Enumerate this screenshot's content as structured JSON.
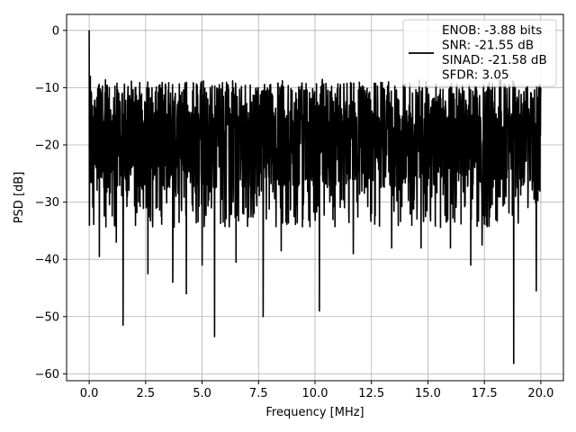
{
  "chart_data": {
    "type": "line",
    "title": "",
    "xlabel": "Frequency [MHz]",
    "ylabel": "PSD [dB]",
    "xlim": [
      -1.0,
      21.0
    ],
    "ylim": [
      -61.2,
      2.8
    ],
    "grid": true,
    "legend_position": "top-right",
    "x_ticks": [
      0.0,
      2.5,
      5.0,
      7.5,
      10.0,
      12.5,
      15.0,
      17.5,
      20.0
    ],
    "x_tick_labels": [
      "0.0",
      "2.5",
      "5.0",
      "7.5",
      "10.0",
      "12.5",
      "15.0",
      "17.5",
      "20.0"
    ],
    "y_ticks": [
      0,
      -10,
      -20,
      -30,
      -40,
      -50,
      -60
    ],
    "y_tick_labels": [
      "0",
      "−10",
      "−20",
      "−30",
      "−40",
      "−50",
      "−60"
    ],
    "legend_lines": [
      "ENOB: -3.88 bits",
      "SNR: -21.55 dB",
      "SINAD: -21.58 dB",
      "SFDR: 3.05"
    ],
    "series": [
      {
        "color": "#000000",
        "x_start": 0.0,
        "x_end": 20.0,
        "sample_count": 2000,
        "noise_floor_db": -21.5,
        "peaks": [
          {
            "x": 0.0,
            "y": 0.0
          },
          {
            "x": 0.05,
            "y": -8.0
          },
          {
            "x": 0.3,
            "y": -24.0
          }
        ],
        "dips": [
          {
            "x": 0.45,
            "y": -39.5
          },
          {
            "x": 1.2,
            "y": -37.0
          },
          {
            "x": 1.5,
            "y": -51.5
          },
          {
            "x": 2.6,
            "y": -42.5
          },
          {
            "x": 3.7,
            "y": -44.0
          },
          {
            "x": 4.3,
            "y": -46.0
          },
          {
            "x": 5.0,
            "y": -41.0
          },
          {
            "x": 5.55,
            "y": -53.5
          },
          {
            "x": 6.5,
            "y": -40.5
          },
          {
            "x": 7.7,
            "y": -50.0
          },
          {
            "x": 8.5,
            "y": -38.5
          },
          {
            "x": 10.2,
            "y": -49.0
          },
          {
            "x": 11.7,
            "y": -39.0
          },
          {
            "x": 13.4,
            "y": -38.0
          },
          {
            "x": 14.7,
            "y": -38.0
          },
          {
            "x": 16.0,
            "y": -38.0
          },
          {
            "x": 16.9,
            "y": -41.0
          },
          {
            "x": 17.4,
            "y": -37.5
          },
          {
            "x": 18.8,
            "y": -58.2
          },
          {
            "x": 19.8,
            "y": -45.5
          }
        ]
      }
    ]
  }
}
